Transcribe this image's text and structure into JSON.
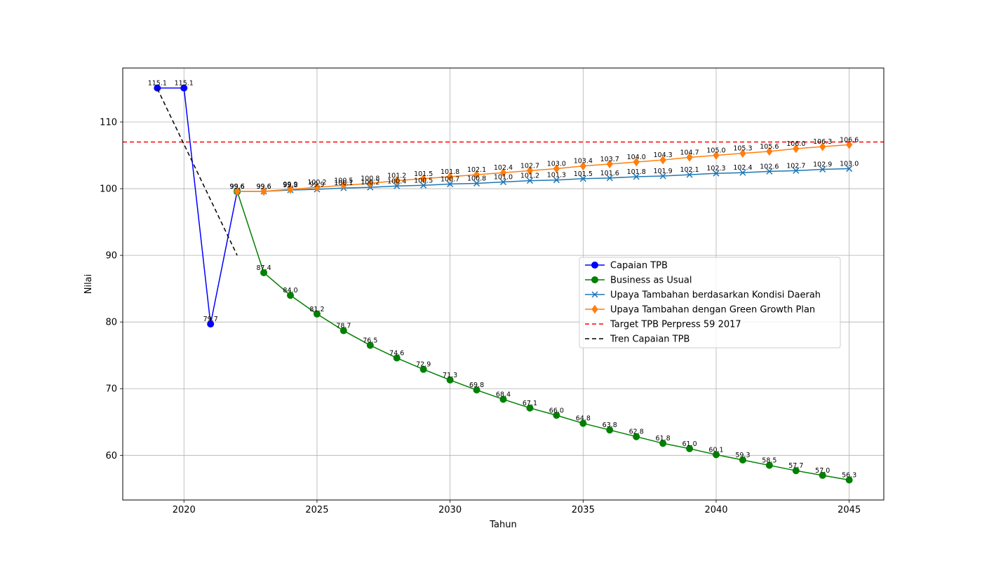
{
  "chart_data": {
    "type": "line",
    "xlabel": "Tahun",
    "ylabel": "Nilai",
    "xlim": [
      2017.7,
      2046.3
    ],
    "ylim": [
      53.3,
      118.1
    ],
    "xticks": [
      2020,
      2025,
      2030,
      2035,
      2040,
      2045
    ],
    "yticks": [
      60,
      70,
      80,
      90,
      100,
      110
    ],
    "grid": true,
    "legend_position": "center-right",
    "series": [
      {
        "name": "Capaian TPB",
        "color": "#0000ff",
        "marker": "circle",
        "style": "solid",
        "x": [
          2019,
          2020,
          2021,
          2022
        ],
        "y": [
          115.1,
          115.1,
          79.7,
          99.6
        ],
        "labels": true
      },
      {
        "name": "Business as Usual",
        "color": "#008000",
        "marker": "circle",
        "style": "solid",
        "x": [
          2022,
          2023,
          2024,
          2025,
          2026,
          2027,
          2028,
          2029,
          2030,
          2031,
          2032,
          2033,
          2034,
          2035,
          2036,
          2037,
          2038,
          2039,
          2040,
          2041,
          2042,
          2043,
          2044,
          2045
        ],
        "y": [
          99.6,
          87.4,
          84.0,
          81.2,
          78.7,
          76.5,
          74.6,
          72.9,
          71.3,
          69.8,
          68.4,
          67.1,
          66.0,
          64.8,
          63.8,
          62.8,
          61.8,
          61.0,
          60.1,
          59.3,
          58.5,
          57.7,
          57.0,
          56.3
        ],
        "labels": true
      },
      {
        "name": "Upaya Tambahan berdasarkan Kondisi Daerah",
        "color": "#1f77b4",
        "marker": "x",
        "style": "solid",
        "x": [
          2022,
          2023,
          2024,
          2025,
          2026,
          2027,
          2028,
          2029,
          2030,
          2031,
          2032,
          2033,
          2034,
          2035,
          2036,
          2037,
          2038,
          2039,
          2040,
          2041,
          2042,
          2043,
          2044,
          2045
        ],
        "y": [
          99.6,
          99.6,
          99.8,
          99.9,
          100.1,
          100.2,
          100.4,
          100.5,
          100.7,
          100.8,
          101.0,
          101.2,
          101.3,
          101.5,
          101.6,
          101.8,
          101.9,
          102.1,
          102.3,
          102.4,
          102.6,
          102.7,
          102.9,
          103.0
        ],
        "labels": true
      },
      {
        "name": "Upaya Tambahan dengan Green Growth Plan",
        "color": "#ff7f0e",
        "marker": "diamond",
        "style": "solid",
        "x": [
          2022,
          2023,
          2024,
          2025,
          2026,
          2027,
          2028,
          2029,
          2030,
          2031,
          2032,
          2033,
          2034,
          2035,
          2036,
          2037,
          2038,
          2039,
          2040,
          2041,
          2042,
          2043,
          2044,
          2045
        ],
        "y": [
          99.6,
          99.6,
          99.9,
          100.2,
          100.5,
          100.8,
          101.2,
          101.5,
          101.8,
          102.1,
          102.4,
          102.7,
          103.0,
          103.4,
          103.7,
          104.0,
          104.3,
          104.7,
          105.0,
          105.3,
          105.6,
          106.0,
          106.3,
          106.6
        ],
        "labels": true
      },
      {
        "name": "Target TPB Perpress 59 2017",
        "color": "#ff0000",
        "marker": "none",
        "style": "dashed",
        "hline": 107.0,
        "labels": false
      },
      {
        "name": "Tren Capaian TPB",
        "color": "#000000",
        "marker": "none",
        "style": "dashed",
        "x": [
          2019,
          2022
        ],
        "y": [
          115.0,
          90.0
        ],
        "labels": false
      }
    ]
  }
}
